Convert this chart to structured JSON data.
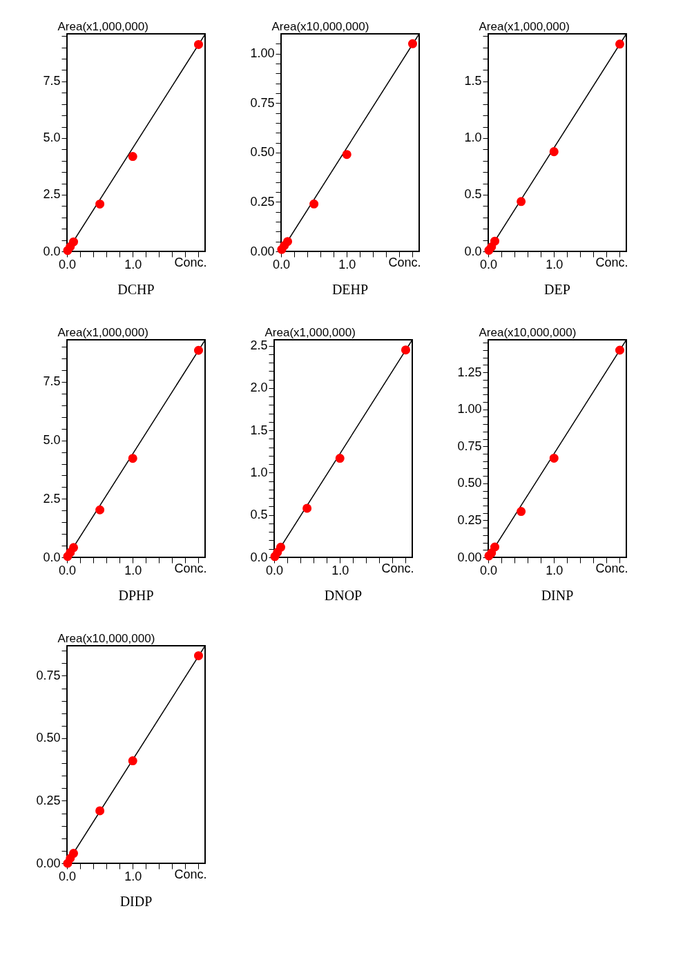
{
  "chart_data": [
    {
      "type": "scatter",
      "title": "DCHP",
      "ylabel": "Area(x1,000,000)",
      "xlabel": "Conc.",
      "grid": false,
      "xlim": [
        0,
        2.1
      ],
      "ylim": [
        0,
        9.6
      ],
      "xticks": [
        {
          "value": 0,
          "label": "0.0"
        },
        {
          "value": 0.2,
          "label": null
        },
        {
          "value": 0.4,
          "label": null
        },
        {
          "value": 0.6,
          "label": null
        },
        {
          "value": 0.8,
          "label": null
        },
        {
          "value": 1,
          "label": "1.0"
        },
        {
          "value": 1.2,
          "label": null
        },
        {
          "value": 1.4,
          "label": null
        },
        {
          "value": 1.6,
          "label": null
        },
        {
          "value": 1.8,
          "label": null
        },
        {
          "value": 2,
          "label": null
        }
      ],
      "yticks": [
        {
          "value": 0,
          "label": "0.0"
        },
        {
          "value": 0.5,
          "label": null
        },
        {
          "value": 1,
          "label": null
        },
        {
          "value": 1.5,
          "label": null
        },
        {
          "value": 2,
          "label": null
        },
        2.5,
        {
          "value": 3,
          "label": null
        },
        {
          "value": 3.5,
          "label": null
        },
        {
          "value": 4,
          "label": null
        },
        {
          "value": 4.5,
          "label": null
        },
        {
          "value": 5,
          "label": "5.0"
        },
        {
          "value": 5.5,
          "label": null
        },
        {
          "value": 6,
          "label": null
        },
        {
          "value": 6.5,
          "label": null
        },
        {
          "value": 7,
          "label": null
        },
        7.5,
        {
          "value": 8,
          "label": null
        },
        {
          "value": 8.5,
          "label": null
        },
        {
          "value": 9,
          "label": null
        },
        {
          "value": 9.5,
          "label": null
        }
      ],
      "series": [
        {
          "type": "line",
          "color": "#000000",
          "x": [
            0,
            2.1
          ],
          "values": [
            0,
            9.58
          ]
        },
        {
          "type": "scatter",
          "marker": "circle",
          "color": "#ff0000",
          "x": [
            0.01,
            0.05,
            0.1,
            0.5,
            1,
            2
          ],
          "values": [
            0.04,
            0.21,
            0.42,
            2.09,
            4.19,
            9.13
          ]
        }
      ]
    },
    {
      "type": "scatter",
      "title": "DEHP",
      "ylabel": "Area(x10,000,000)",
      "xlabel": "Conc.",
      "grid": false,
      "xlim": [
        0,
        2.1
      ],
      "ylim": [
        0,
        1.1
      ],
      "xticks": [
        {
          "value": 0,
          "label": "0.0"
        },
        {
          "value": 0.2,
          "label": null
        },
        {
          "value": 0.4,
          "label": null
        },
        {
          "value": 0.6,
          "label": null
        },
        {
          "value": 0.8,
          "label": null
        },
        {
          "value": 1,
          "label": "1.0"
        },
        {
          "value": 1.2,
          "label": null
        },
        {
          "value": 1.4,
          "label": null
        },
        {
          "value": 1.6,
          "label": null
        },
        {
          "value": 1.8,
          "label": null
        },
        {
          "value": 2,
          "label": null
        }
      ],
      "yticks": [
        {
          "value": 0,
          "label": "0.00"
        },
        {
          "value": 0.05,
          "label": null
        },
        {
          "value": 0.1,
          "label": null
        },
        {
          "value": 0.15,
          "label": null
        },
        {
          "value": 0.2,
          "label": null
        },
        0.25,
        {
          "value": 0.3,
          "label": null
        },
        {
          "value": 0.35,
          "label": null
        },
        {
          "value": 0.4,
          "label": null
        },
        {
          "value": 0.45,
          "label": null
        },
        {
          "value": 0.5,
          "label": "0.50"
        },
        {
          "value": 0.55,
          "label": null
        },
        {
          "value": 0.6,
          "label": null
        },
        {
          "value": 0.65,
          "label": null
        },
        {
          "value": 0.7,
          "label": null
        },
        0.75,
        {
          "value": 0.8,
          "label": null
        },
        {
          "value": 0.85,
          "label": null
        },
        {
          "value": 0.9,
          "label": null
        },
        {
          "value": 0.95,
          "label": null
        },
        {
          "value": 1,
          "label": "1.00"
        },
        {
          "value": 1.05,
          "label": null
        }
      ],
      "series": [
        {
          "type": "line",
          "color": "#000000",
          "x": [
            0,
            2.1
          ],
          "values": [
            0,
            1.1
          ]
        },
        {
          "type": "scatter",
          "marker": "circle",
          "color": "#ff0000",
          "x": [
            0.01,
            0.05,
            0.1,
            0.5,
            1,
            2
          ],
          "values": [
            0.01,
            0.03,
            0.05,
            0.24,
            0.49,
            1.05
          ]
        }
      ]
    },
    {
      "type": "scatter",
      "title": "DEP",
      "ylabel": "Area(x1,000,000)",
      "xlabel": "Conc.",
      "grid": false,
      "xlim": [
        0,
        2.1
      ],
      "ylim": [
        0,
        1.92
      ],
      "xticks": [
        {
          "value": 0,
          "label": "0.0"
        },
        {
          "value": 0.2,
          "label": null
        },
        {
          "value": 0.4,
          "label": null
        },
        {
          "value": 0.6,
          "label": null
        },
        {
          "value": 0.8,
          "label": null
        },
        {
          "value": 1,
          "label": "1.0"
        },
        {
          "value": 1.2,
          "label": null
        },
        {
          "value": 1.4,
          "label": null
        },
        {
          "value": 1.6,
          "label": null
        },
        {
          "value": 1.8,
          "label": null
        },
        {
          "value": 2,
          "label": null
        }
      ],
      "yticks": [
        {
          "value": 0,
          "label": "0.0"
        },
        {
          "value": 0.1,
          "label": null
        },
        {
          "value": 0.2,
          "label": null
        },
        {
          "value": 0.3,
          "label": null
        },
        {
          "value": 0.4,
          "label": null
        },
        0.5,
        {
          "value": 0.6,
          "label": null
        },
        {
          "value": 0.7,
          "label": null
        },
        {
          "value": 0.8,
          "label": null
        },
        {
          "value": 0.9,
          "label": null
        },
        {
          "value": 1,
          "label": "1.0"
        },
        {
          "value": 1.1,
          "label": null
        },
        {
          "value": 1.2,
          "label": null
        },
        {
          "value": 1.3,
          "label": null
        },
        {
          "value": 1.4,
          "label": null
        },
        1.5,
        {
          "value": 1.6,
          "label": null
        },
        {
          "value": 1.7,
          "label": null
        },
        {
          "value": 1.8,
          "label": null
        },
        {
          "value": 1.9,
          "label": null
        }
      ],
      "series": [
        {
          "type": "line",
          "color": "#000000",
          "x": [
            0,
            2.1
          ],
          "values": [
            0,
            1.92
          ]
        },
        {
          "type": "scatter",
          "marker": "circle",
          "color": "#ff0000",
          "x": [
            0.01,
            0.05,
            0.1,
            0.5,
            1,
            2
          ],
          "values": [
            0.01,
            0.04,
            0.09,
            0.44,
            0.88,
            1.83
          ]
        }
      ]
    },
    {
      "type": "scatter",
      "title": "DPHP",
      "ylabel": "Area(x1,000,000)",
      "xlabel": "Conc.",
      "grid": false,
      "xlim": [
        0,
        2.1
      ],
      "ylim": [
        0,
        9.3
      ],
      "xticks": [
        {
          "value": 0,
          "label": "0.0"
        },
        {
          "value": 0.2,
          "label": null
        },
        {
          "value": 0.4,
          "label": null
        },
        {
          "value": 0.6,
          "label": null
        },
        {
          "value": 0.8,
          "label": null
        },
        {
          "value": 1,
          "label": "1.0"
        },
        {
          "value": 1.2,
          "label": null
        },
        {
          "value": 1.4,
          "label": null
        },
        {
          "value": 1.6,
          "label": null
        },
        {
          "value": 1.8,
          "label": null
        },
        {
          "value": 2,
          "label": null
        }
      ],
      "yticks": [
        {
          "value": 0,
          "label": "0.0"
        },
        {
          "value": 0.5,
          "label": null
        },
        {
          "value": 1,
          "label": null
        },
        {
          "value": 1.5,
          "label": null
        },
        {
          "value": 2,
          "label": null
        },
        2.5,
        {
          "value": 3,
          "label": null
        },
        {
          "value": 3.5,
          "label": null
        },
        {
          "value": 4,
          "label": null
        },
        {
          "value": 4.5,
          "label": null
        },
        {
          "value": 5,
          "label": "5.0"
        },
        {
          "value": 5.5,
          "label": null
        },
        {
          "value": 6,
          "label": null
        },
        {
          "value": 6.5,
          "label": null
        },
        {
          "value": 7,
          "label": null
        },
        7.5,
        {
          "value": 8,
          "label": null
        },
        {
          "value": 8.5,
          "label": null
        },
        {
          "value": 9,
          "label": null
        }
      ],
      "series": [
        {
          "type": "line",
          "color": "#000000",
          "x": [
            0,
            2.1
          ],
          "values": [
            0,
            9.29
          ]
        },
        {
          "type": "scatter",
          "marker": "circle",
          "color": "#ff0000",
          "x": [
            0.01,
            0.05,
            0.1,
            0.5,
            1,
            2
          ],
          "values": [
            0.04,
            0.21,
            0.42,
            2.03,
            4.23,
            8.85
          ]
        }
      ]
    },
    {
      "type": "scatter",
      "title": "DNOP",
      "ylabel": "Area(x1,000,000)",
      "xlabel": "Conc.",
      "grid": false,
      "xlim": [
        0,
        2.1
      ],
      "ylim": [
        0,
        2.57
      ],
      "xticks": [
        {
          "value": 0,
          "label": "0.0"
        },
        {
          "value": 0.2,
          "label": null
        },
        {
          "value": 0.4,
          "label": null
        },
        {
          "value": 0.6,
          "label": null
        },
        {
          "value": 0.8,
          "label": null
        },
        {
          "value": 1,
          "label": "1.0"
        },
        {
          "value": 1.2,
          "label": null
        },
        {
          "value": 1.4,
          "label": null
        },
        {
          "value": 1.6,
          "label": null
        },
        {
          "value": 1.8,
          "label": null
        },
        {
          "value": 2,
          "label": null
        }
      ],
      "yticks": [
        {
          "value": 0,
          "label": "0.0"
        },
        {
          "value": 0.1,
          "label": null
        },
        {
          "value": 0.2,
          "label": null
        },
        {
          "value": 0.3,
          "label": null
        },
        {
          "value": 0.4,
          "label": null
        },
        0.5,
        {
          "value": 0.6,
          "label": null
        },
        {
          "value": 0.7,
          "label": null
        },
        {
          "value": 0.8,
          "label": null
        },
        {
          "value": 0.9,
          "label": null
        },
        {
          "value": 1,
          "label": "1.0"
        },
        {
          "value": 1.1,
          "label": null
        },
        {
          "value": 1.2,
          "label": null
        },
        {
          "value": 1.3,
          "label": null
        },
        {
          "value": 1.4,
          "label": null
        },
        1.5,
        {
          "value": 1.6,
          "label": null
        },
        {
          "value": 1.7,
          "label": null
        },
        {
          "value": 1.8,
          "label": null
        },
        {
          "value": 1.9,
          "label": null
        },
        {
          "value": 2,
          "label": "2.0"
        },
        {
          "value": 2.1,
          "label": null
        },
        {
          "value": 2.2,
          "label": null
        },
        {
          "value": 2.3,
          "label": null
        },
        {
          "value": 2.4,
          "label": null
        },
        2.5
      ],
      "series": [
        {
          "type": "line",
          "color": "#000000",
          "x": [
            0,
            2.1
          ],
          "values": [
            0,
            2.57
          ]
        },
        {
          "type": "scatter",
          "marker": "circle",
          "color": "#ff0000",
          "x": [
            0.01,
            0.05,
            0.1,
            0.5,
            1,
            2
          ],
          "values": [
            0.01,
            0.06,
            0.12,
            0.58,
            1.17,
            2.45
          ]
        }
      ]
    },
    {
      "type": "scatter",
      "title": "DINP",
      "ylabel": "Area(x10,000,000)",
      "xlabel": "Conc.",
      "grid": false,
      "xlim": [
        0,
        2.1
      ],
      "ylim": [
        0,
        1.47
      ],
      "xticks": [
        {
          "value": 0,
          "label": "0.0"
        },
        {
          "value": 0.2,
          "label": null
        },
        {
          "value": 0.4,
          "label": null
        },
        {
          "value": 0.6,
          "label": null
        },
        {
          "value": 0.8,
          "label": null
        },
        {
          "value": 1,
          "label": "1.0"
        },
        {
          "value": 1.2,
          "label": null
        },
        {
          "value": 1.4,
          "label": null
        },
        {
          "value": 1.6,
          "label": null
        },
        {
          "value": 1.8,
          "label": null
        },
        {
          "value": 2,
          "label": null
        }
      ],
      "yticks": [
        {
          "value": 0,
          "label": "0.00"
        },
        {
          "value": 0.05,
          "label": null
        },
        {
          "value": 0.1,
          "label": null
        },
        {
          "value": 0.15,
          "label": null
        },
        {
          "value": 0.2,
          "label": null
        },
        0.25,
        {
          "value": 0.3,
          "label": null
        },
        {
          "value": 0.35,
          "label": null
        },
        {
          "value": 0.4,
          "label": null
        },
        {
          "value": 0.45,
          "label": null
        },
        {
          "value": 0.5,
          "label": "0.50"
        },
        {
          "value": 0.55,
          "label": null
        },
        {
          "value": 0.6,
          "label": null
        },
        {
          "value": 0.65,
          "label": null
        },
        {
          "value": 0.7,
          "label": null
        },
        0.75,
        {
          "value": 0.8,
          "label": null
        },
        {
          "value": 0.85,
          "label": null
        },
        {
          "value": 0.9,
          "label": null
        },
        {
          "value": 0.95,
          "label": null
        },
        {
          "value": 1,
          "label": "1.00"
        },
        {
          "value": 1.05,
          "label": null
        },
        {
          "value": 1.1,
          "label": null
        },
        {
          "value": 1.15,
          "label": null
        },
        {
          "value": 1.2,
          "label": null
        },
        1.25,
        {
          "value": 1.3,
          "label": null
        },
        {
          "value": 1.35,
          "label": null
        },
        {
          "value": 1.4,
          "label": null
        },
        {
          "value": 1.45,
          "label": null
        }
      ],
      "series": [
        {
          "type": "line",
          "color": "#000000",
          "x": [
            0,
            2.1
          ],
          "values": [
            0,
            1.47
          ]
        },
        {
          "type": "scatter",
          "marker": "circle",
          "color": "#ff0000",
          "x": [
            0.01,
            0.05,
            0.1,
            0.5,
            1,
            2
          ],
          "values": [
            0.01,
            0.03,
            0.07,
            0.31,
            0.67,
            1.4
          ]
        }
      ]
    },
    {
      "type": "scatter",
      "title": "DIDP",
      "ylabel": "Area(x10,000,000)",
      "xlabel": "Conc.",
      "grid": false,
      "xlim": [
        0,
        2.1
      ],
      "ylim": [
        0,
        0.87
      ],
      "xticks": [
        {
          "value": 0,
          "label": "0.0"
        },
        {
          "value": 0.2,
          "label": null
        },
        {
          "value": 0.4,
          "label": null
        },
        {
          "value": 0.6,
          "label": null
        },
        {
          "value": 0.8,
          "label": null
        },
        {
          "value": 1,
          "label": "1.0"
        },
        {
          "value": 1.2,
          "label": null
        },
        {
          "value": 1.4,
          "label": null
        },
        {
          "value": 1.6,
          "label": null
        },
        {
          "value": 1.8,
          "label": null
        },
        {
          "value": 2,
          "label": null
        }
      ],
      "yticks": [
        {
          "value": 0,
          "label": "0.00"
        },
        {
          "value": 0.05,
          "label": null
        },
        {
          "value": 0.1,
          "label": null
        },
        {
          "value": 0.15,
          "label": null
        },
        {
          "value": 0.2,
          "label": null
        },
        0.25,
        {
          "value": 0.3,
          "label": null
        },
        {
          "value": 0.35,
          "label": null
        },
        {
          "value": 0.4,
          "label": null
        },
        {
          "value": 0.45,
          "label": null
        },
        {
          "value": 0.5,
          "label": "0.50"
        },
        {
          "value": 0.55,
          "label": null
        },
        {
          "value": 0.6,
          "label": null
        },
        {
          "value": 0.65,
          "label": null
        },
        {
          "value": 0.7,
          "label": null
        },
        0.75,
        {
          "value": 0.8,
          "label": null
        },
        {
          "value": 0.85,
          "label": null
        }
      ],
      "series": [
        {
          "type": "line",
          "color": "#000000",
          "x": [
            0,
            2.1
          ],
          "values": [
            0,
            0.87
          ]
        },
        {
          "type": "scatter",
          "marker": "circle",
          "color": "#ff0000",
          "x": [
            0.01,
            0.05,
            0.1,
            0.5,
            1,
            2
          ],
          "values": [
            0,
            0.02,
            0.04,
            0.21,
            0.41,
            0.83
          ]
        }
      ]
    }
  ]
}
